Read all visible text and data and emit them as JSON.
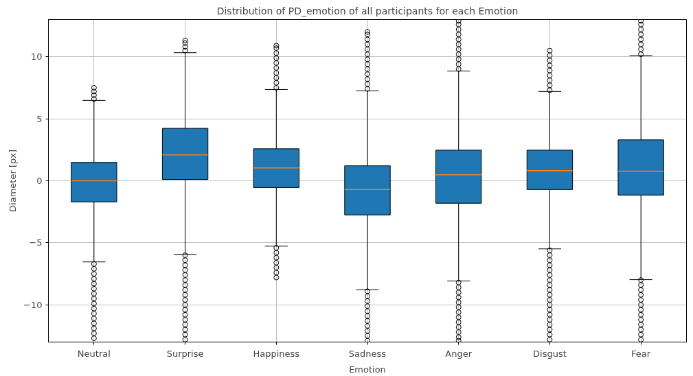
{
  "chart_data": {
    "type": "box",
    "title": "Distribution of PD_emotion of all participants for each Emotion",
    "xlabel": "Emotion",
    "ylabel": "Diameter [px]",
    "categories": [
      "Neutral",
      "Surprise",
      "Happiness",
      "Sadness",
      "Anger",
      "Disgust",
      "Fear"
    ],
    "color": "#1f77b4",
    "ylim": [
      -13,
      13
    ],
    "yticks": [
      -10,
      -5,
      0,
      5,
      10
    ],
    "grid": true,
    "marker": "circle",
    "boxes": [
      {
        "low": -6.54,
        "q1": -1.7,
        "median": 0.0,
        "q3": 1.48,
        "high": 6.48,
        "outliers": [
          6.6,
          6.9,
          7.2,
          7.5,
          -6.7,
          -7.1,
          -7.5,
          -7.9,
          -8.3,
          -8.7,
          -9.1,
          -9.5,
          -9.9,
          -10.3,
          -10.7,
          -11.1,
          -11.5,
          -11.9,
          -12.3,
          -12.7
        ]
      },
      {
        "low": -5.93,
        "q1": 0.11,
        "median": 2.09,
        "q3": 4.23,
        "high": 10.33,
        "outliers": [
          10.5,
          10.8,
          11.1,
          11.3,
          -6.0,
          -6.4,
          -6.8,
          -7.2,
          -7.6,
          -8.0,
          -8.4,
          -8.8,
          -9.2,
          -9.6,
          -10.0,
          -10.4,
          -10.8,
          -11.2,
          -11.6,
          -12.0,
          -12.4,
          -12.8
        ]
      },
      {
        "low": -5.27,
        "q1": -0.55,
        "median": 1.04,
        "q3": 2.58,
        "high": 7.36,
        "outliers": [
          7.5,
          7.9,
          8.3,
          8.7,
          9.1,
          9.5,
          9.9,
          10.3,
          10.7,
          10.9,
          -5.4,
          -5.8,
          -6.2,
          -6.6,
          -7.0,
          -7.4,
          -7.8
        ]
      },
      {
        "low": -8.79,
        "q1": -2.75,
        "median": -0.71,
        "q3": 1.21,
        "high": 7.25,
        "outliers": [
          7.4,
          7.8,
          8.2,
          8.6,
          9.0,
          9.4,
          9.8,
          10.2,
          10.6,
          11.0,
          11.4,
          11.8,
          12.0,
          -8.9,
          -9.3,
          -9.7,
          -10.1,
          -10.5,
          -10.9,
          -11.3,
          -11.7,
          -12.1,
          -12.5,
          -12.9
        ]
      },
      {
        "low": -8.08,
        "q1": -1.81,
        "median": 0.49,
        "q3": 2.47,
        "high": 8.85,
        "outliers": [
          9.0,
          9.4,
          9.8,
          10.2,
          10.6,
          11.0,
          11.4,
          11.8,
          12.2,
          12.6,
          12.9,
          -8.2,
          -8.6,
          -9.0,
          -9.4,
          -9.8,
          -10.2,
          -10.6,
          -11.0,
          -11.4,
          -11.8,
          -12.2,
          -12.6,
          -12.9
        ]
      },
      {
        "low": -5.49,
        "q1": -0.71,
        "median": 0.82,
        "q3": 2.47,
        "high": 7.2,
        "outliers": [
          7.3,
          7.7,
          8.1,
          8.5,
          8.9,
          9.3,
          9.7,
          10.1,
          10.5,
          -5.6,
          -6.0,
          -6.4,
          -6.8,
          -7.2,
          -7.6,
          -8.0,
          -8.4,
          -8.8,
          -9.2,
          -9.6,
          -10.0,
          -10.4,
          -10.8,
          -11.2,
          -11.6,
          -12.0,
          -12.4,
          -12.8
        ]
      },
      {
        "low": -7.97,
        "q1": -1.15,
        "median": 0.77,
        "q3": 3.3,
        "high": 10.1,
        "outliers": [
          10.2,
          10.6,
          11.0,
          11.4,
          11.8,
          12.2,
          12.6,
          12.9,
          -8.0,
          -8.4,
          -8.8,
          -9.2,
          -9.6,
          -10.0,
          -10.4,
          -10.8,
          -11.2,
          -11.6,
          -12.0,
          -12.4,
          -12.8
        ]
      }
    ]
  }
}
